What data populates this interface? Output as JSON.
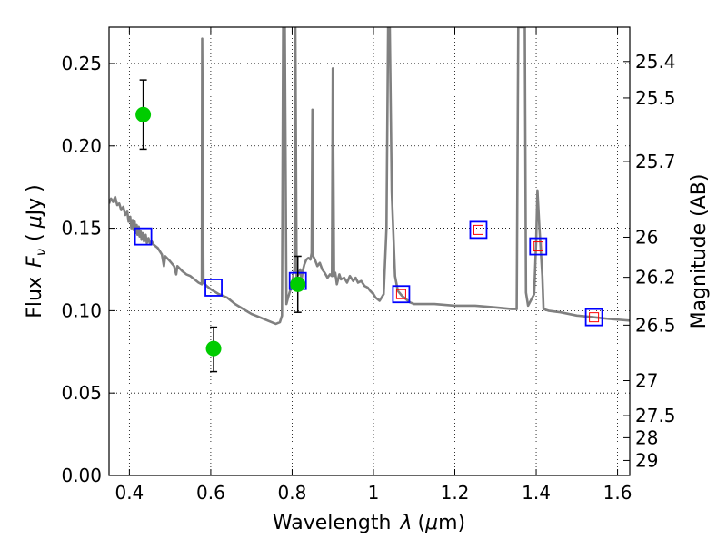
{
  "chart_data": {
    "type": "scatter",
    "xlabel": "Wavelength  λ (μm)",
    "ylabel": "Flux  F_ν  ( μJy )",
    "ylabel_parts": [
      "Flux",
      "F",
      "ν",
      "(",
      "μ",
      "Jy",
      ")"
    ],
    "xlabel_parts": [
      "Wavelength",
      "λ",
      "(",
      "μ",
      "m)"
    ],
    "y2label": "Magnitude (AB)",
    "xlim": [
      0.35,
      1.63
    ],
    "ylim": [
      0.0,
      0.272
    ],
    "grid": true,
    "x_ticks": [
      {
        "v": 0.4,
        "label": "0.4"
      },
      {
        "v": 0.6,
        "label": "0.6"
      },
      {
        "v": 0.8,
        "label": "0.8"
      },
      {
        "v": 1.0,
        "label": "1"
      },
      {
        "v": 1.2,
        "label": "1.2"
      },
      {
        "v": 1.4,
        "label": "1.4"
      },
      {
        "v": 1.6,
        "label": "1.6"
      }
    ],
    "y_ticks": [
      {
        "v": 0.0,
        "label": "0.00"
      },
      {
        "v": 0.05,
        "label": "0.05"
      },
      {
        "v": 0.1,
        "label": "0.10"
      },
      {
        "v": 0.15,
        "label": "0.15"
      },
      {
        "v": 0.2,
        "label": "0.20"
      },
      {
        "v": 0.25,
        "label": "0.25"
      }
    ],
    "mag_ticks": [
      {
        "v": 25.4,
        "label": "25.4"
      },
      {
        "v": 25.5,
        "label": "25.5"
      },
      {
        "v": 25.7,
        "label": "25.7"
      },
      {
        "v": 26.0,
        "label": "26"
      },
      {
        "v": 26.2,
        "label": "26.2"
      },
      {
        "v": 26.5,
        "label": "26.5"
      },
      {
        "v": 27.0,
        "label": "27"
      },
      {
        "v": 27.5,
        "label": "27.5"
      },
      {
        "v": 28.0,
        "label": "28"
      },
      {
        "v": 29.0,
        "label": "29"
      }
    ],
    "series": [
      {
        "kind": "line",
        "color": "#808080",
        "points": [
          [
            0.35,
            0.165
          ],
          [
            0.355,
            0.168
          ],
          [
            0.36,
            0.166
          ],
          [
            0.365,
            0.169
          ],
          [
            0.37,
            0.164
          ],
          [
            0.375,
            0.165
          ],
          [
            0.38,
            0.161
          ],
          [
            0.385,
            0.163
          ],
          [
            0.39,
            0.158
          ],
          [
            0.395,
            0.16
          ],
          [
            0.398,
            0.154
          ],
          [
            0.402,
            0.157
          ],
          [
            0.405,
            0.15
          ],
          [
            0.408,
            0.155
          ],
          [
            0.41,
            0.149
          ],
          [
            0.413,
            0.154
          ],
          [
            0.415,
            0.147
          ],
          [
            0.418,
            0.152
          ],
          [
            0.42,
            0.146
          ],
          [
            0.423,
            0.151
          ],
          [
            0.425,
            0.145
          ],
          [
            0.428,
            0.148
          ],
          [
            0.43,
            0.143
          ],
          [
            0.433,
            0.147
          ],
          [
            0.436,
            0.142
          ],
          [
            0.44,
            0.146
          ],
          [
            0.443,
            0.141
          ],
          [
            0.447,
            0.144
          ],
          [
            0.45,
            0.141
          ],
          [
            0.455,
            0.142
          ],
          [
            0.46,
            0.14
          ],
          [
            0.47,
            0.138
          ],
          [
            0.48,
            0.134
          ],
          [
            0.485,
            0.127
          ],
          [
            0.488,
            0.133
          ],
          [
            0.5,
            0.13
          ],
          [
            0.51,
            0.127
          ],
          [
            0.515,
            0.122
          ],
          [
            0.518,
            0.127
          ],
          [
            0.53,
            0.124
          ],
          [
            0.54,
            0.122
          ],
          [
            0.55,
            0.121
          ],
          [
            0.56,
            0.119
          ],
          [
            0.57,
            0.117
          ],
          [
            0.578,
            0.116
          ],
          [
            0.579,
            0.265
          ],
          [
            0.582,
            0.117
          ],
          [
            0.59,
            0.115
          ],
          [
            0.6,
            0.113
          ],
          [
            0.62,
            0.11
          ],
          [
            0.64,
            0.108
          ],
          [
            0.66,
            0.104
          ],
          [
            0.68,
            0.101
          ],
          [
            0.7,
            0.098
          ],
          [
            0.72,
            0.096
          ],
          [
            0.74,
            0.094
          ],
          [
            0.76,
            0.092
          ],
          [
            0.77,
            0.093
          ],
          [
            0.775,
            0.097
          ],
          [
            0.778,
            0.272
          ],
          [
            0.782,
            0.272
          ],
          [
            0.786,
            0.104
          ],
          [
            0.79,
            0.108
          ],
          [
            0.795,
            0.112
          ],
          [
            0.8,
            0.115
          ],
          [
            0.803,
            0.122
          ],
          [
            0.806,
            0.125
          ],
          [
            0.808,
            0.272
          ],
          [
            0.811,
            0.12
          ],
          [
            0.815,
            0.122
          ],
          [
            0.82,
            0.125
          ],
          [
            0.823,
            0.118
          ],
          [
            0.826,
            0.124
          ],
          [
            0.83,
            0.128
          ],
          [
            0.835,
            0.131
          ],
          [
            0.84,
            0.132
          ],
          [
            0.845,
            0.131
          ],
          [
            0.848,
            0.135
          ],
          [
            0.85,
            0.222
          ],
          [
            0.852,
            0.133
          ],
          [
            0.856,
            0.131
          ],
          [
            0.862,
            0.127
          ],
          [
            0.868,
            0.129
          ],
          [
            0.874,
            0.125
          ],
          [
            0.88,
            0.123
          ],
          [
            0.887,
            0.12
          ],
          [
            0.893,
            0.122
          ],
          [
            0.898,
            0.121
          ],
          [
            0.9,
            0.247
          ],
          [
            0.903,
            0.121
          ],
          [
            0.906,
            0.123
          ],
          [
            0.91,
            0.116
          ],
          [
            0.916,
            0.122
          ],
          [
            0.92,
            0.119
          ],
          [
            0.928,
            0.12
          ],
          [
            0.935,
            0.117
          ],
          [
            0.942,
            0.121
          ],
          [
            0.95,
            0.118
          ],
          [
            0.956,
            0.12
          ],
          [
            0.962,
            0.117
          ],
          [
            0.97,
            0.118
          ],
          [
            0.978,
            0.115
          ],
          [
            0.986,
            0.114
          ],
          [
            0.992,
            0.112
          ],
          [
            1.0,
            0.11
          ],
          [
            1.005,
            0.108
          ],
          [
            1.015,
            0.106
          ],
          [
            1.025,
            0.11
          ],
          [
            1.032,
            0.15
          ],
          [
            1.036,
            0.272
          ],
          [
            1.04,
            0.272
          ],
          [
            1.045,
            0.172
          ],
          [
            1.053,
            0.121
          ],
          [
            1.06,
            0.112
          ],
          [
            1.07,
            0.109
          ],
          [
            1.08,
            0.107
          ],
          [
            1.09,
            0.105
          ],
          [
            1.1,
            0.104
          ],
          [
            1.15,
            0.104
          ],
          [
            1.2,
            0.103
          ],
          [
            1.25,
            0.103
          ],
          [
            1.3,
            0.102
          ],
          [
            1.34,
            0.101
          ],
          [
            1.352,
            0.101
          ],
          [
            1.356,
            0.272
          ],
          [
            1.365,
            0.272
          ],
          [
            1.372,
            0.272
          ],
          [
            1.375,
            0.111
          ],
          [
            1.38,
            0.103
          ],
          [
            1.395,
            0.11
          ],
          [
            1.4,
            0.142
          ],
          [
            1.403,
            0.173
          ],
          [
            1.408,
            0.15
          ],
          [
            1.415,
            0.121
          ],
          [
            1.418,
            0.101
          ],
          [
            1.43,
            0.1
          ],
          [
            1.46,
            0.099
          ],
          [
            1.5,
            0.097
          ],
          [
            1.54,
            0.096
          ],
          [
            1.58,
            0.095
          ],
          [
            1.63,
            0.094
          ]
        ]
      },
      {
        "kind": "points",
        "marker": "open-square",
        "color": "#0000ff",
        "points": [
          [
            0.434,
            0.145
          ],
          [
            0.607,
            0.114
          ],
          [
            0.814,
            0.118
          ],
          [
            1.068,
            0.11
          ],
          [
            1.258,
            0.149
          ],
          [
            1.405,
            0.139
          ],
          [
            1.542,
            0.096
          ]
        ]
      },
      {
        "kind": "points",
        "marker": "small-open-square",
        "color": "#ff0000",
        "points": [
          [
            1.068,
            0.11
          ],
          [
            1.258,
            0.149
          ],
          [
            1.405,
            0.139
          ],
          [
            1.542,
            0.096
          ]
        ]
      },
      {
        "kind": "errorbar",
        "marker": "filled-circle",
        "color": "#00cc00",
        "points": [
          {
            "x": 0.434,
            "y": 0.219,
            "lo": 0.198,
            "hi": 0.24
          },
          {
            "x": 0.607,
            "y": 0.077,
            "lo": 0.063,
            "hi": 0.09
          },
          {
            "x": 0.814,
            "y": 0.116,
            "lo": 0.099,
            "hi": 0.133
          }
        ]
      }
    ]
  }
}
